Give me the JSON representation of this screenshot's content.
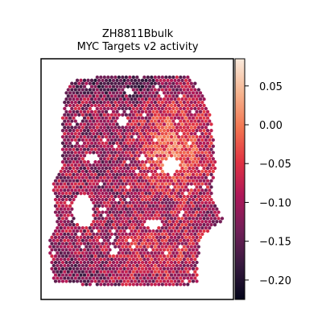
{
  "chart_data": {
    "type": "heatmap",
    "subtype": "spatial hexagonal spot map",
    "title_lines": [
      "ZH8811Bbulk",
      "MYC Targets v2 activity"
    ],
    "colormap": "rocket",
    "colorbar": {
      "range": [
        -0.225,
        0.085
      ],
      "ticks": [
        0.05,
        0.0,
        -0.05,
        -0.1,
        -0.15,
        -0.2
      ],
      "tick_labels": [
        "0.05",
        "0.00",
        "−0.05",
        "−0.10",
        "−0.15",
        "−0.20"
      ],
      "colors": [
        "#03051a",
        "#36193e",
        "#701f57",
        "#ad1759",
        "#e13342",
        "#f37651",
        "#f6b48f",
        "#faebdd"
      ]
    },
    "axes_visible": false,
    "grid": false
  }
}
